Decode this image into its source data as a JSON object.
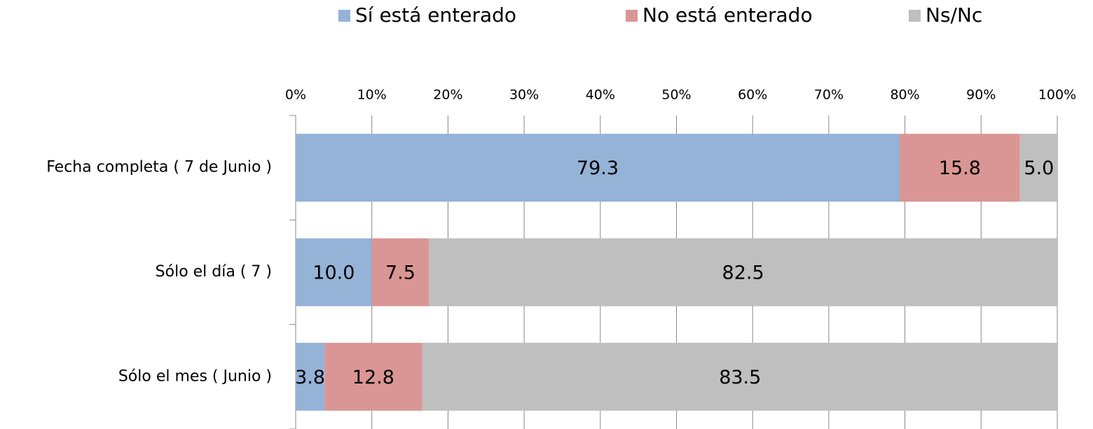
{
  "chart_data": {
    "type": "stacked-bar-horizontal",
    "categories": [
      "Fecha completa ( 7 de Junio )",
      "Sólo el día ( 7 )",
      "Sólo el mes ( Junio )"
    ],
    "series": [
      {
        "name": "Sí está enterado",
        "color": "#95b3d7",
        "values": [
          79.3,
          10.0,
          3.8
        ],
        "value_labels": [
          "79.3",
          "10.0",
          "3.8"
        ]
      },
      {
        "name": "No está enterado",
        "color": "#d99694",
        "values": [
          15.8,
          7.5,
          12.8
        ],
        "value_labels": [
          "15.8",
          "7.5",
          "12.8"
        ]
      },
      {
        "name": "Ns/Nc",
        "color": "#bfbfbf",
        "values": [
          5.0,
          82.5,
          83.5
        ],
        "value_labels": [
          "5.0",
          "82.5",
          "83.5"
        ]
      }
    ],
    "xlim": [
      0,
      100
    ],
    "xticks": [
      {
        "value": 0,
        "label": "0%"
      },
      {
        "value": 10,
        "label": "10%"
      },
      {
        "value": 20,
        "label": "20%"
      },
      {
        "value": 30,
        "label": "30%"
      },
      {
        "value": 40,
        "label": "40%"
      },
      {
        "value": 50,
        "label": "50%"
      },
      {
        "value": 60,
        "label": "60%"
      },
      {
        "value": 70,
        "label": "70%"
      },
      {
        "value": 80,
        "label": "80%"
      },
      {
        "value": 90,
        "label": "90%"
      },
      {
        "value": 100,
        "label": "100%"
      }
    ],
    "grid": true,
    "legend": "top"
  }
}
